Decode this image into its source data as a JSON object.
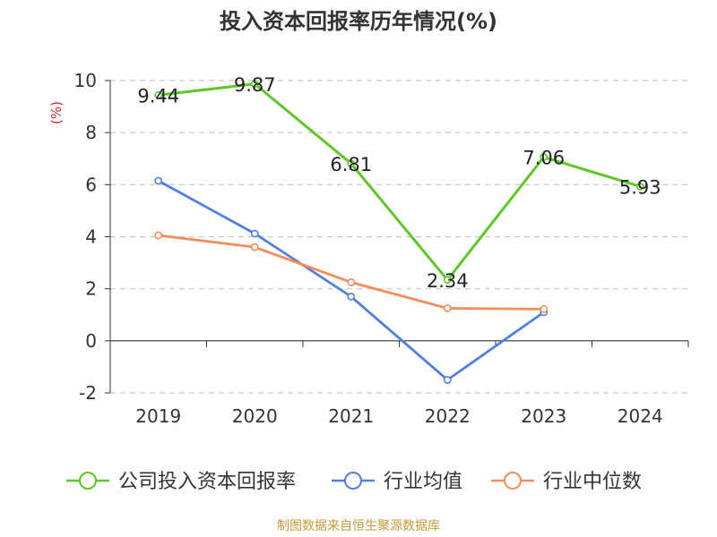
{
  "source_note": "制图数据来自恒生聚源数据库",
  "chart_data": {
    "type": "line",
    "title": "投入资本回报率历年情况(%)",
    "ylabel": "(%)",
    "xlabel": "",
    "categories": [
      "2019",
      "2020",
      "2021",
      "2022",
      "2023",
      "2024"
    ],
    "ylim": [
      -2,
      10
    ],
    "yticks": [
      -2,
      0,
      2,
      4,
      6,
      8,
      10
    ],
    "grid": true,
    "legend_position": "bottom",
    "series": [
      {
        "name": "公司投入资本回报率",
        "color": "#5cc726",
        "values": [
          9.44,
          9.87,
          6.81,
          2.34,
          7.06,
          5.93
        ],
        "labels": [
          "9.44",
          "9.87",
          "6.81",
          "2.34",
          "7.06",
          "5.93"
        ]
      },
      {
        "name": "行业均值",
        "color": "#4f7fe0",
        "values": [
          6.15,
          4.12,
          1.7,
          -1.5,
          1.1,
          null
        ]
      },
      {
        "name": "行业中位数",
        "color": "#f78c5a",
        "values": [
          4.05,
          3.6,
          2.25,
          1.25,
          1.22,
          null
        ]
      }
    ]
  }
}
